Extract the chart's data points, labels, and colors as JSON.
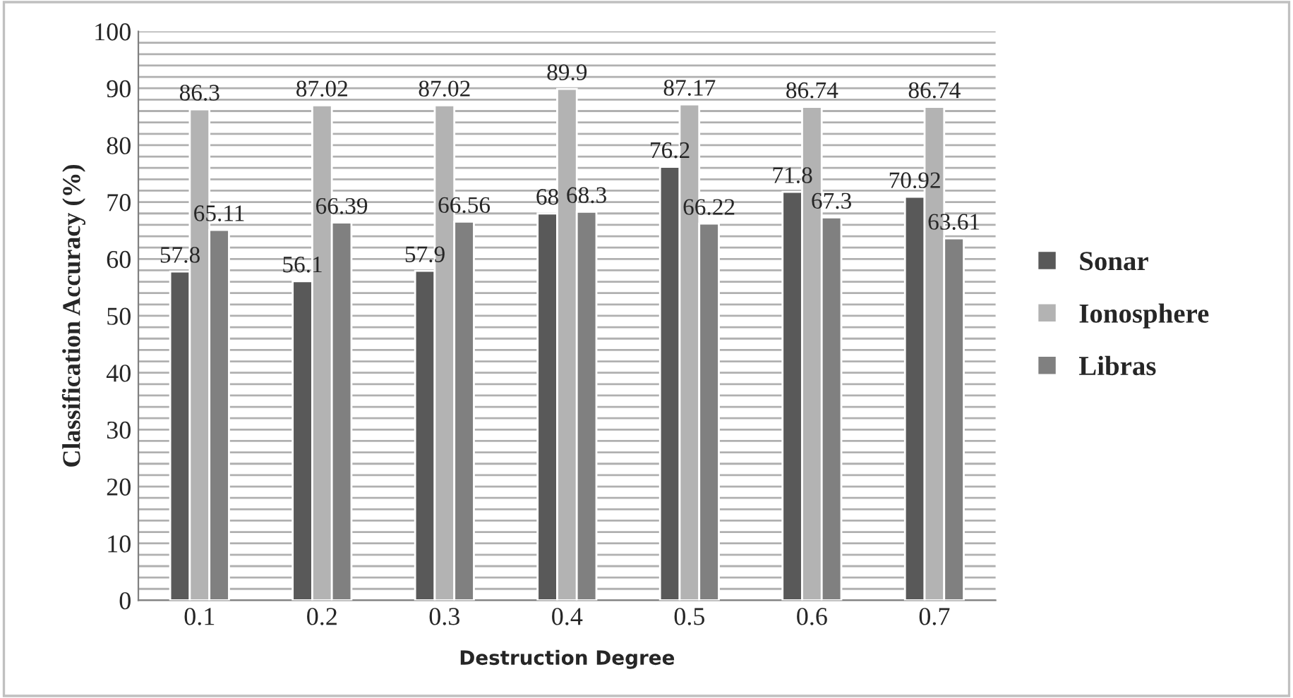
{
  "chart_data": {
    "type": "bar",
    "xlabel": "Destruction Degree",
    "ylabel": "Classification Accuracy (%)",
    "categories": [
      "0.1",
      "0.2",
      "0.3",
      "0.4",
      "0.5",
      "0.6",
      "0.7"
    ],
    "series": [
      {
        "name": "Sonar",
        "color": "#595959",
        "values": [
          57.8,
          56.1,
          57.9,
          68,
          76.2,
          71.8,
          70.92
        ]
      },
      {
        "name": "Ionosphere",
        "color": "#b3b3b3",
        "values": [
          86.3,
          87.02,
          87.02,
          89.9,
          87.17,
          86.74,
          86.74
        ]
      },
      {
        "name": "Libras",
        "color": "#808080",
        "values": [
          65.11,
          66.39,
          66.56,
          68.3,
          66.22,
          67.3,
          63.61
        ]
      }
    ],
    "ylim": [
      0,
      100
    ],
    "yticks": [
      0,
      {
        "value": 2,
        "label": null
      },
      {
        "value": 4,
        "label": null
      },
      {
        "value": 6,
        "label": null
      },
      {
        "value": 8,
        "label": null
      },
      10,
      {
        "value": 12,
        "label": null
      },
      {
        "value": 14,
        "label": null
      },
      {
        "value": 16,
        "label": null
      },
      {
        "value": 18,
        "label": null
      },
      20,
      {
        "value": 22,
        "label": null
      },
      {
        "value": 24,
        "label": null
      },
      {
        "value": 26,
        "label": null
      },
      {
        "value": 28,
        "label": null
      },
      30,
      {
        "value": 32,
        "label": null
      },
      {
        "value": 34,
        "label": null
      },
      {
        "value": 36,
        "label": null
      },
      {
        "value": 38,
        "label": null
      },
      40,
      {
        "value": 42,
        "label": null
      },
      {
        "value": 44,
        "label": null
      },
      {
        "value": 46,
        "label": null
      },
      {
        "value": 48,
        "label": null
      },
      50,
      {
        "value": 52,
        "label": null
      },
      {
        "value": 54,
        "label": null
      },
      {
        "value": 56,
        "label": null
      },
      {
        "value": 58,
        "label": null
      },
      60,
      {
        "value": 62,
        "label": null
      },
      {
        "value": 64,
        "label": null
      },
      {
        "value": 66,
        "label": null
      },
      {
        "value": 68,
        "label": null
      },
      70,
      {
        "value": 72,
        "label": null
      },
      {
        "value": 74,
        "label": null
      },
      {
        "value": 76,
        "label": null
      },
      {
        "value": 78,
        "label": null
      },
      80,
      {
        "value": 82,
        "label": null
      },
      {
        "value": 84,
        "label": null
      },
      {
        "value": 86,
        "label": null
      },
      {
        "value": 88,
        "label": null
      },
      90,
      {
        "value": 92,
        "label": null
      },
      {
        "value": 94,
        "label": null
      },
      {
        "value": 96,
        "label": null
      },
      {
        "value": 98,
        "label": null
      },
      100
    ],
    "grid": "y",
    "legend": "right",
    "data_labels": true
  }
}
